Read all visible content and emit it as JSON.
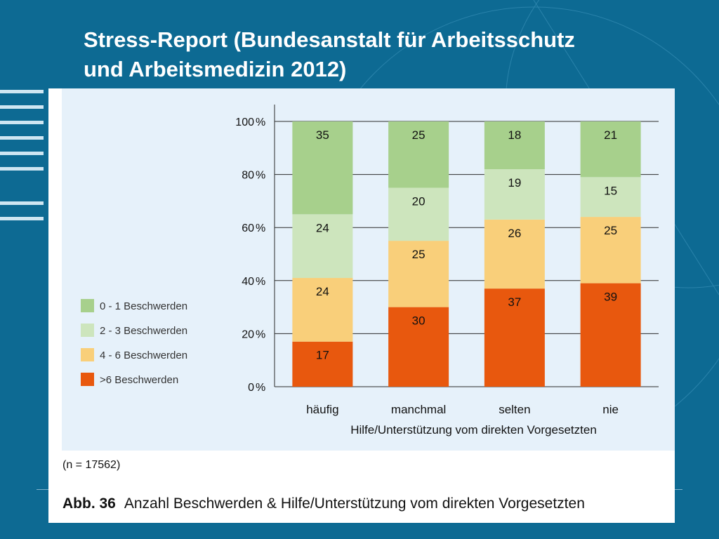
{
  "slide": {
    "title_line1": "Stress-Report (Bundesanstalt für Arbeitsschutz",
    "title_line2": "und Arbeitsmedizin 2012)"
  },
  "figure": {
    "n_note": "(n = 17562)",
    "caption_number": "Abb. 36",
    "caption_text": "Anzahl Beschwerden & Hilfe/Unterstützung vom direkten Vorgesetzten"
  },
  "chart_data": {
    "type": "bar",
    "stacked": true,
    "title": "",
    "xlabel": "Hilfe/Unterstützung vom direkten Vorgesetzten",
    "ylabel": "",
    "ylim": [
      0,
      100
    ],
    "yticks": [
      "0 %",
      "20 %",
      "40 %",
      "60 %",
      "80 %",
      "100 %"
    ],
    "categories": [
      "häufig",
      "manchmal",
      "selten",
      "nie"
    ],
    "series": [
      {
        "name": ">6  Beschwerden",
        "color": "#e8580e",
        "values": [
          17,
          30,
          37,
          39
        ]
      },
      {
        "name": "4 - 6 Beschwerden",
        "color": "#f9cf7a",
        "values": [
          24,
          25,
          26,
          25
        ]
      },
      {
        "name": "2 - 3 Beschwerden",
        "color": "#cde5bd",
        "values": [
          24,
          20,
          19,
          15
        ]
      },
      {
        "name": "0 - 1 Beschwerden",
        "color": "#a7d08c",
        "values": [
          35,
          25,
          18,
          21
        ]
      }
    ],
    "legend_order": [
      "0 - 1 Beschwerden",
      "2 - 3 Beschwerden",
      "4 - 6 Beschwerden",
      ">6  Beschwerden"
    ],
    "legend_position": "left",
    "grid": true
  }
}
